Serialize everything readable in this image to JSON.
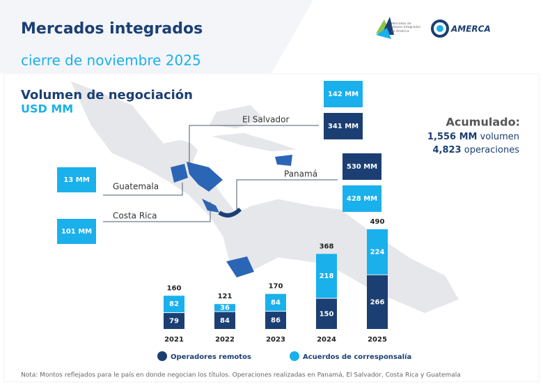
{
  "header": {
    "title": "Mercados integrados",
    "subtitle": "cierre de noviembre 2025",
    "logo_left": "Mercados de Valores Integrados de América",
    "logo_right": "AMERCA"
  },
  "panel": {
    "title": "Volumen de negociación",
    "unit": "USD MM",
    "countries": [
      {
        "name": "El Salvador",
        "values": [
          "142 MM",
          "341 MM"
        ]
      },
      {
        "name": "Guatemala",
        "values": [
          "13 MM"
        ]
      },
      {
        "name": "Costa Rica",
        "values": [
          "101 MM"
        ]
      },
      {
        "name": "Panamá",
        "values": [
          "530 MM",
          "428 MM"
        ]
      }
    ],
    "accumulated": {
      "title": "Acumulado:",
      "volume": "1,556 MM",
      "volume_label": "volumen",
      "operations": "4,823",
      "operations_label": "operaciones"
    }
  },
  "chart_data": {
    "type": "bar",
    "stacked": true,
    "categories": [
      "2021",
      "2022",
      "2023",
      "2024",
      "2025"
    ],
    "series": [
      {
        "name": "Operadores remotos",
        "color": "#1b3f73",
        "values": [
          79,
          84,
          86,
          150,
          266
        ]
      },
      {
        "name": "Acuerdos de corresponsalía",
        "color": "#1ab0ec",
        "values": [
          82,
          36,
          84,
          218,
          224
        ]
      }
    ],
    "totals": [
      160,
      121,
      170,
      368,
      490
    ]
  },
  "note": "Nota: Montos reflejados para le país en donde negocian los títulos. Operaciones realizadas en Panamá, El Salvador, Costa Rica y Guatemala"
}
